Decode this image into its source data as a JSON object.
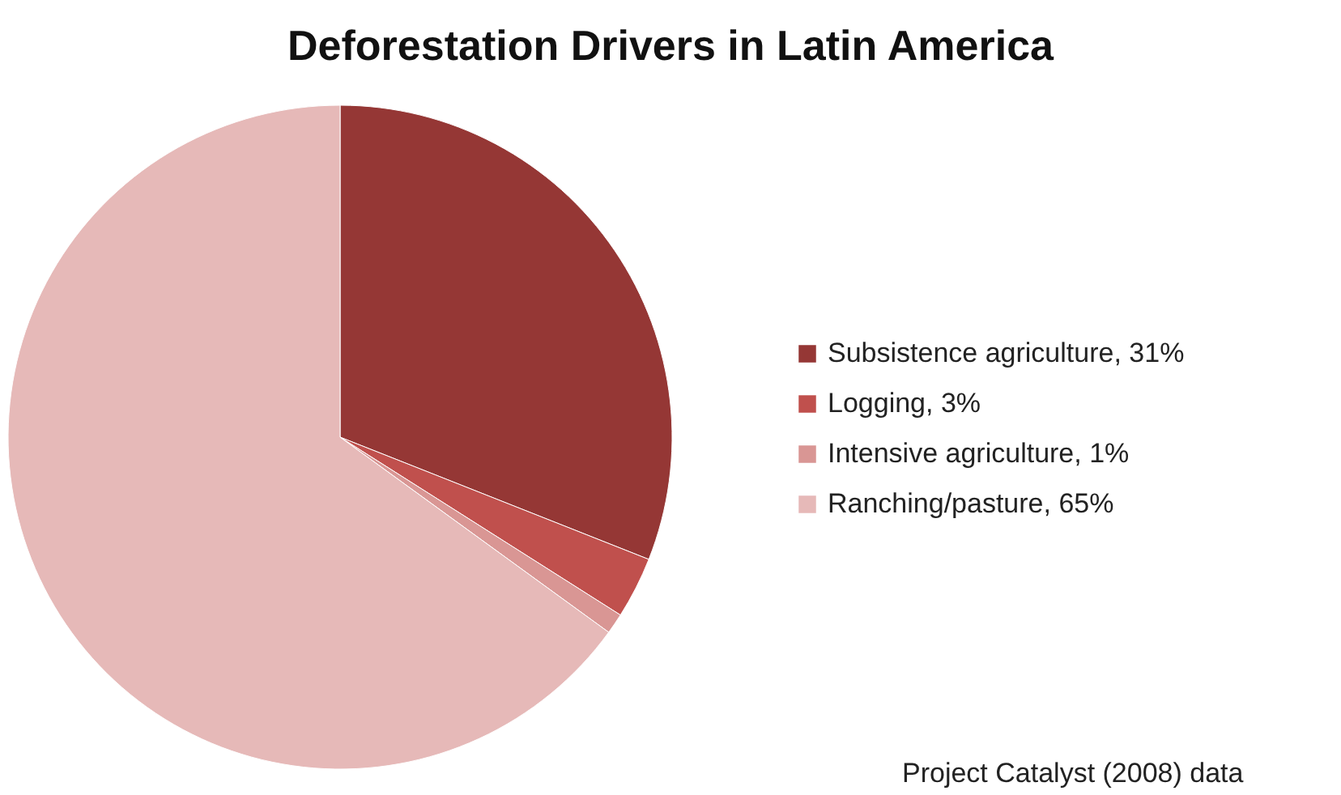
{
  "chart_data": {
    "type": "pie",
    "title": "Deforestation Drivers in Latin America",
    "categories": [
      "Subsistence agriculture, 31%",
      "Logging, 3%",
      "Intensive agriculture, 1%",
      "Ranching/pasture, 65%"
    ],
    "values": [
      31,
      3,
      1,
      65
    ],
    "colors": [
      "#953735",
      "#c0504d",
      "#d99694",
      "#e6b9b8"
    ],
    "legend": "right",
    "annotations": [
      "Project Catalyst (2008) data"
    ]
  }
}
